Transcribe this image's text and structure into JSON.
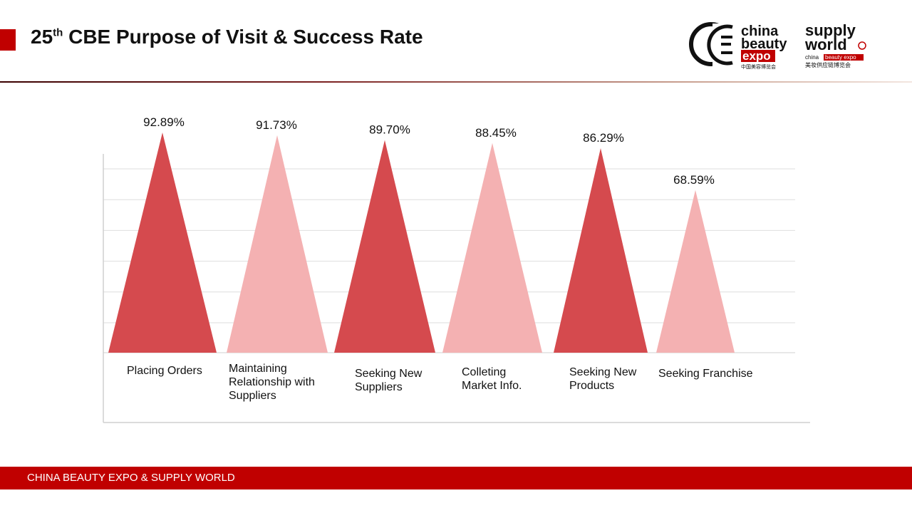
{
  "header": {
    "title_main": "25",
    "title_sup": "th",
    "title_rest": " CBE Purpose of Visit & Success Rate"
  },
  "logos": {
    "cbe_line1": "china",
    "cbe_line2": "beauty",
    "cbe_line3": "expo",
    "cbe_chinese": "中国美容博览会",
    "sw_line1": "supply",
    "sw_line2": "world",
    "sw_small_a": "china",
    "sw_small_b": "beauty expo",
    "sw_chinese": "美妆供应链博览会"
  },
  "footer": {
    "text": "CHINA BEAUTY EXPO & SUPPLY  WORLD"
  },
  "colors": {
    "accent": "#c00000",
    "dark_series": "#d54a4e",
    "light_series": "#f4b1b2"
  },
  "chart_data": {
    "type": "bar",
    "categories": [
      [
        "Placing Orders"
      ],
      [
        "Maintaining",
        "Relationship with",
        "Suppliers"
      ],
      [
        "Seeking New",
        "Suppliers"
      ],
      [
        "Colleting",
        "Market Info."
      ],
      [
        "Seeking New",
        "Products"
      ],
      [
        "Seeking Franchise"
      ]
    ],
    "values": [
      92.89,
      91.73,
      89.7,
      88.45,
      86.29,
      68.59
    ],
    "labels": [
      "92.89%",
      "91.73%",
      "89.70%",
      "88.45%",
      "86.29%",
      "68.59%"
    ],
    "bar_colors": [
      "#d54a4e",
      "#f4b1b2",
      "#d54a4e",
      "#f4b1b2",
      "#d54a4e",
      "#f4b1b2"
    ],
    "grid": true
  }
}
